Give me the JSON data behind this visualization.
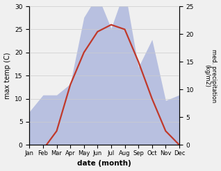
{
  "months": [
    "Jan",
    "Feb",
    "Mar",
    "Apr",
    "May",
    "Jun",
    "Jul",
    "Aug",
    "Sep",
    "Oct",
    "Nov",
    "Dec"
  ],
  "temperature": [
    -0.5,
    -1.0,
    3.0,
    13.0,
    20.0,
    24.5,
    26.0,
    25.0,
    18.0,
    10.0,
    3.0,
    0.0
  ],
  "precipitation": [
    6,
    9,
    9,
    11,
    23,
    27,
    21,
    28,
    14,
    19,
    8,
    9
  ],
  "temp_color": "#c0392b",
  "precip_fill_color": "#b8c0e0",
  "ylabel_left": "max temp (C)",
  "ylabel_right": "med. precipitation\n(kg/m2)",
  "xlabel": "date (month)",
  "ylim_left": [
    0,
    30
  ],
  "ylim_right": [
    0,
    25
  ],
  "temp_lw": 1.6,
  "bg_color": "#f0f0f0"
}
